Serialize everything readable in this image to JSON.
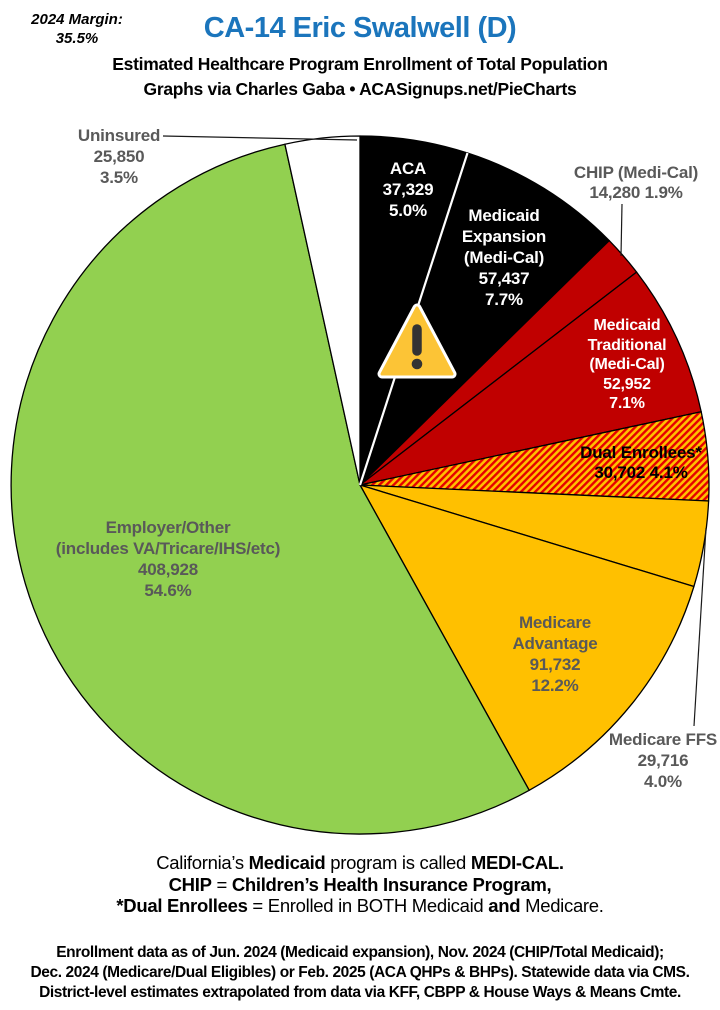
{
  "header": {
    "margin_label": "2024 Margin:",
    "margin_value": "35.5%",
    "title": "CA-14 Eric Swalwell (D)",
    "subtitle": "Estimated Healthcare Program Enrollment of Total Population",
    "byline": "Graphs via Charles Gaba   •   ACASignups.net/PieCharts"
  },
  "chart_data": {
    "type": "pie",
    "title": "Estimated Healthcare Program Enrollment of Total Population",
    "direction": "clockwise",
    "start_angle": "12 o'clock",
    "slices": [
      {
        "id": "aca",
        "label": "ACA",
        "value": 37329,
        "pct": 5.0,
        "display_lines": [
          "ACA",
          "37,329",
          "5.0%"
        ],
        "color": "#000000"
      },
      {
        "id": "medicaid_expansion",
        "label": "Medicaid Expansion (Medi-Cal)",
        "value": 57437,
        "pct": 7.7,
        "display_lines": [
          "Medicaid",
          "Expansion",
          "(Medi-Cal)",
          "57,437",
          "7.7%"
        ],
        "color": "#000000"
      },
      {
        "id": "chip",
        "label": "CHIP (Medi-Cal)",
        "value": 14280,
        "pct": 1.9,
        "display_lines": [
          "CHIP (Medi-Cal)",
          "14,280 1.9%"
        ],
        "color": "#c00000"
      },
      {
        "id": "medicaid_traditional",
        "label": "Medicaid Traditional (Medi-Cal)",
        "value": 52952,
        "pct": 7.1,
        "display_lines": [
          "Medicaid",
          "Traditional",
          "(Medi-Cal)",
          "52,952",
          "7.1%"
        ],
        "color": "#c00000"
      },
      {
        "id": "dual",
        "label": "Dual Enrollees*",
        "value": 30702,
        "pct": 4.1,
        "display_lines": [
          "Dual Enrollees*",
          "30,702 4.1%"
        ],
        "color": "#ffc000",
        "hatch": "#e60000"
      },
      {
        "id": "medicare_ffs",
        "label": "Medicare FFS",
        "value": 29716,
        "pct": 4.0,
        "display_lines": [
          "Medicare FFS",
          "29,716",
          "4.0%"
        ],
        "color": "#ffc000"
      },
      {
        "id": "medicare_advantage",
        "label": "Medicare Advantage",
        "value": 91732,
        "pct": 12.2,
        "display_lines": [
          "Medicare",
          "Advantage",
          "91,732",
          "12.2%"
        ],
        "color": "#ffc000"
      },
      {
        "id": "employer",
        "label": "Employer/Other (includes VA/Tricare/IHS/etc)",
        "value": 408928,
        "pct": 54.6,
        "display_lines": [
          "Employer/Other",
          "(includes VA/Tricare/IHS/etc)",
          "408,928",
          "54.6%"
        ],
        "color": "#92d050"
      },
      {
        "id": "uninsured",
        "label": "Uninsured",
        "value": 25850,
        "pct": 3.5,
        "display_lines": [
          "Uninsured",
          "25,850",
          "3.5%"
        ],
        "color": "#ffffff"
      }
    ],
    "accent_colors": {
      "title_blue": "#1b75bc",
      "red": "#c00000",
      "gold": "#ffc000",
      "green": "#92d050",
      "black": "#000000",
      "label_gray": "#595959"
    }
  },
  "notes": {
    "lines": [
      [
        {
          "t": "California’s ",
          "b": 0
        },
        {
          "t": "Medicaid",
          "b": 1
        },
        {
          "t": " program is called ",
          "b": 0
        },
        {
          "t": "MEDI-CAL.",
          "b": 1
        }
      ],
      [
        {
          "t": "CHIP",
          "b": 1
        },
        {
          "t": " = ",
          "b": 0
        },
        {
          "t": "Children’s Health Insurance Program,",
          "b": 1
        }
      ],
      [
        {
          "t": "*Dual Enrollees",
          "b": 1
        },
        {
          "t": " = Enrolled in BOTH Medicaid ",
          "b": 0
        },
        {
          "t": "and",
          "b": 1
        },
        {
          "t": " Medicare.",
          "b": 0
        }
      ]
    ]
  },
  "footer": {
    "lines": [
      "Enrollment data as of Jun. 2024 (Medicaid expansion), Nov. 2024 (CHIP/Total Medicaid);",
      "Dec. 2024 (Medicare/Dual Eligibles) or Feb. 2025 (ACA QHPs & BHPs). Statewide data via CMS.",
      "District-level estimates extrapolated from data via KFF, CBPP & House Ways & Means Cmte."
    ]
  }
}
